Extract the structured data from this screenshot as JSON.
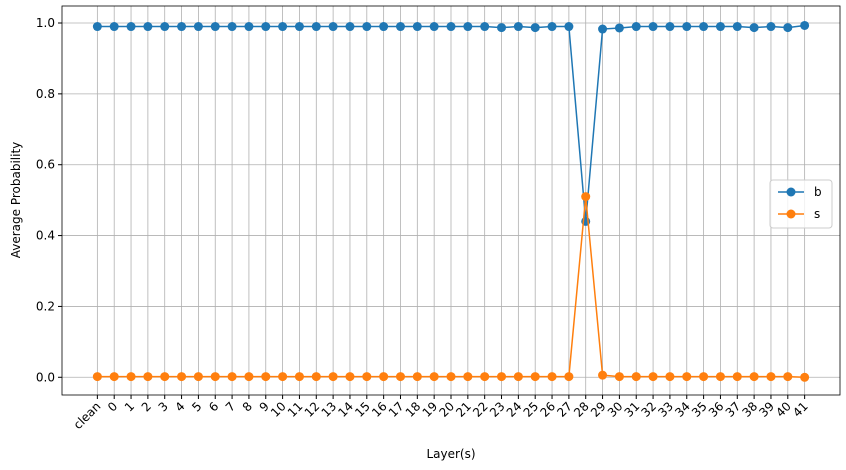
{
  "chart_data": {
    "type": "line",
    "xlabel": "Layer(s)",
    "ylabel": "Average Probability",
    "categories": [
      "clean",
      "0",
      "1",
      "2",
      "3",
      "4",
      "5",
      "6",
      "7",
      "8",
      "9",
      "10",
      "11",
      "12",
      "13",
      "14",
      "15",
      "16",
      "17",
      "18",
      "19",
      "20",
      "21",
      "22",
      "23",
      "24",
      "25",
      "26",
      "27",
      "28",
      "29",
      "30",
      "31",
      "32",
      "33",
      "34",
      "35",
      "36",
      "37",
      "38",
      "39",
      "40",
      "41"
    ],
    "series": [
      {
        "name": "b",
        "color": "#1f77b4",
        "values": [
          0.99,
          0.99,
          0.99,
          0.99,
          0.99,
          0.99,
          0.99,
          0.99,
          0.99,
          0.99,
          0.99,
          0.99,
          0.99,
          0.99,
          0.99,
          0.99,
          0.99,
          0.99,
          0.99,
          0.99,
          0.99,
          0.99,
          0.99,
          0.99,
          0.987,
          0.99,
          0.987,
          0.99,
          0.99,
          0.44,
          0.983,
          0.986,
          0.99,
          0.99,
          0.99,
          0.99,
          0.99,
          0.99,
          0.99,
          0.987,
          0.99,
          0.987,
          0.993
        ]
      },
      {
        "name": "s",
        "color": "#ff7f0e",
        "values": [
          0.002,
          0.002,
          0.002,
          0.002,
          0.002,
          0.002,
          0.002,
          0.002,
          0.002,
          0.002,
          0.002,
          0.002,
          0.002,
          0.002,
          0.002,
          0.002,
          0.002,
          0.002,
          0.002,
          0.002,
          0.002,
          0.002,
          0.002,
          0.002,
          0.002,
          0.002,
          0.002,
          0.002,
          0.002,
          0.51,
          0.006,
          0.002,
          0.002,
          0.002,
          0.002,
          0.002,
          0.002,
          0.002,
          0.002,
          0.002,
          0.002,
          0.002,
          0.0
        ]
      }
    ],
    "ylim": [
      -0.05,
      1.048
    ],
    "yticks": [
      {
        "value": 0,
        "label": "0.0"
      },
      0.2,
      0.4,
      0.6,
      0.8,
      {
        "value": 1,
        "label": "1.0"
      }
    ],
    "grid": true,
    "legend": "right"
  }
}
